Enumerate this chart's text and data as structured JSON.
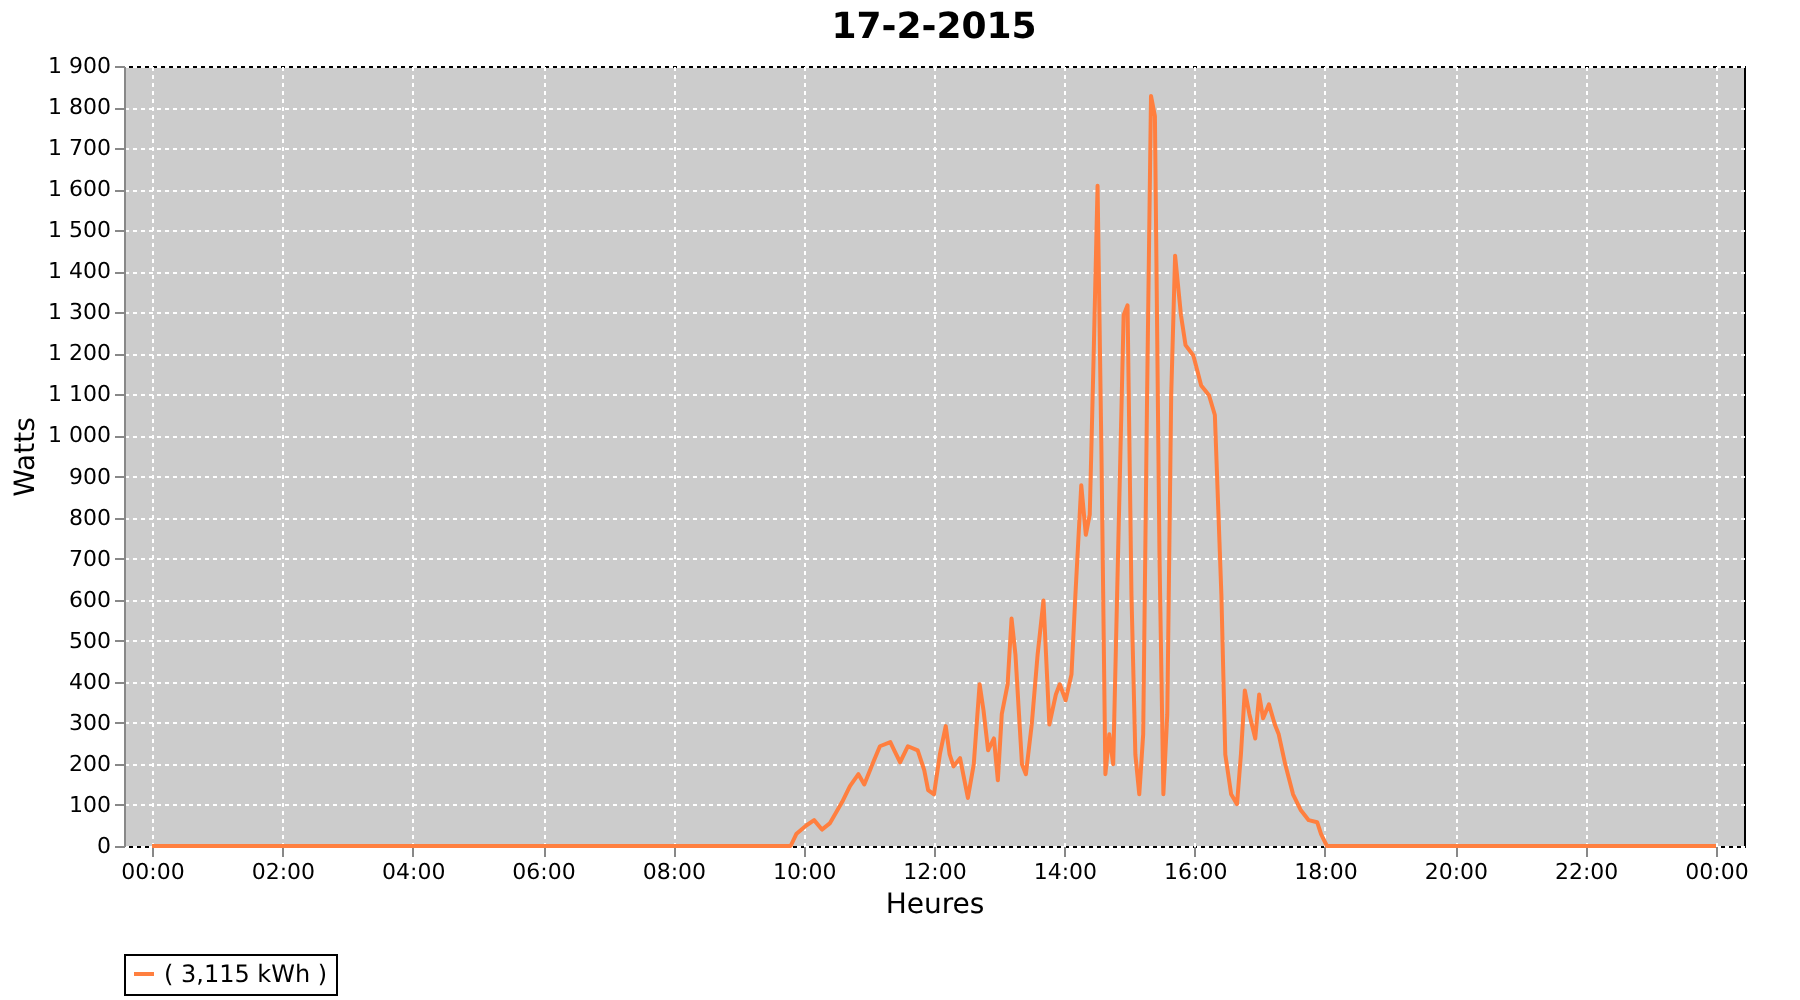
{
  "chart_data": {
    "type": "line",
    "title": "17-2-2015",
    "xlabel": "Heures",
    "ylabel": "Watts",
    "xlim": [
      -0.43,
      24.43
    ],
    "ylim": [
      0,
      1900
    ],
    "xticks": [
      {
        "value": 0,
        "label": "00:00"
      },
      {
        "value": 2,
        "label": "02:00"
      },
      {
        "value": 4,
        "label": "04:00"
      },
      {
        "value": 6,
        "label": "06:00"
      },
      {
        "value": 8,
        "label": "08:00"
      },
      {
        "value": 10,
        "label": "10:00"
      },
      {
        "value": 12,
        "label": "12:00"
      },
      {
        "value": 14,
        "label": "14:00"
      },
      {
        "value": 16,
        "label": "16:00"
      },
      {
        "value": 18,
        "label": "18:00"
      },
      {
        "value": 20,
        "label": "20:00"
      },
      {
        "value": 22,
        "label": "22:00"
      },
      {
        "value": 24,
        "label": "00:00"
      }
    ],
    "yticks": [
      0,
      100,
      200,
      300,
      400,
      500,
      600,
      700,
      800,
      900,
      {
        "value": 1000,
        "label": "1 000"
      },
      {
        "value": 1100,
        "label": "1 100"
      },
      {
        "value": 1200,
        "label": "1 200"
      },
      {
        "value": 1300,
        "label": "1 300"
      },
      {
        "value": 1400,
        "label": "1 400"
      },
      {
        "value": 1500,
        "label": "1 500"
      },
      {
        "value": 1600,
        "label": "1 600"
      },
      {
        "value": 1700,
        "label": "1 700"
      },
      {
        "value": 1800,
        "label": "1 800"
      },
      {
        "value": 1900,
        "label": "1 900"
      }
    ],
    "grid": true,
    "legend": "bottom",
    "marker": "none",
    "line_style": "solid",
    "series": [
      {
        "name": "( 3,115 kWh )",
        "color": "#ff7f3f",
        "x": [
          0,
          9.8,
          9.89,
          10.04,
          10.16,
          10.28,
          10.4,
          10.59,
          10.71,
          10.84,
          10.93,
          11.08,
          11.17,
          11.33,
          11.39,
          11.48,
          11.6,
          11.75,
          11.85,
          11.91,
          12.0,
          12.09,
          12.18,
          12.24,
          12.3,
          12.4,
          12.52,
          12.61,
          12.7,
          12.76,
          12.83,
          12.92,
          12.98,
          13.04,
          13.13,
          13.19,
          13.25,
          13.35,
          13.41,
          13.5,
          13.59,
          13.68,
          13.77,
          13.87,
          13.93,
          14.02,
          14.11,
          14.17,
          14.26,
          14.33,
          14.39,
          14.45,
          14.51,
          14.57,
          14.63,
          14.69,
          14.75,
          14.81,
          14.91,
          14.97,
          15.03,
          15.09,
          15.15,
          15.21,
          15.27,
          15.33,
          15.39,
          15.46,
          15.52,
          15.58,
          15.64,
          15.7,
          15.79,
          15.86,
          15.98,
          16.1,
          16.22,
          16.31,
          16.41,
          16.47,
          16.56,
          16.65,
          16.71,
          16.77,
          16.84,
          16.93,
          16.99,
          17.05,
          17.14,
          17.23,
          17.29,
          17.39,
          17.51,
          17.63,
          17.75,
          17.88,
          17.94,
          18.03,
          24
        ],
        "values": [
          0,
          0,
          30,
          50,
          63,
          40,
          55,
          107,
          146,
          175,
          150,
          209,
          243,
          253,
          233,
          204,
          243,
          233,
          185,
          136,
          126,
          223,
          292,
          223,
          194,
          214,
          117,
          199,
          394,
          330,
          233,
          262,
          160,
          321,
          394,
          554,
          466,
          199,
          175,
          296,
          466,
          598,
          296,
          369,
          394,
          355,
          418,
          612,
          879,
          758,
          807,
          1195,
          1608,
          952,
          175,
          272,
          199,
          612,
          1293,
          1317,
          612,
          223,
          126,
          272,
          1098,
          1827,
          1778,
          709,
          126,
          321,
          1098,
          1438,
          1293,
          1220,
          1195,
          1122,
          1098,
          1050,
          612,
          223,
          126,
          102,
          223,
          379,
          321,
          262,
          369,
          311,
          345,
          296,
          272,
          199,
          126,
          87,
          63,
          58,
          29,
          0,
          0
        ]
      }
    ]
  }
}
